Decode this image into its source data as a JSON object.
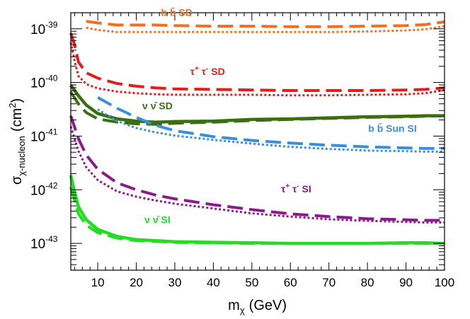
{
  "chart_data": {
    "type": "line",
    "title": "",
    "xlabel": "m",
    "xlabel_sub": "χ",
    "xlabel_unit": "(GeV)",
    "ylabel": "σ",
    "ylabel_sub": "χ-nucleon",
    "ylabel_unit": "(cm",
    "ylabel_unit_sup": "2",
    "ylabel_unit_close": ")",
    "xlim": [
      3,
      100
    ],
    "ylim_log10": [
      -43.5,
      -38.7
    ],
    "y_scale": "log",
    "x_ticks": [
      10,
      20,
      30,
      40,
      50,
      60,
      70,
      80,
      90,
      100
    ],
    "y_ticks": [
      {
        "base": "10",
        "exp": "-39",
        "value": -39
      },
      {
        "base": "10",
        "exp": "-40",
        "value": -40
      },
      {
        "base": "10",
        "exp": "-41",
        "value": -41
      },
      {
        "base": "10",
        "exp": "-42",
        "value": -42
      },
      {
        "base": "10",
        "exp": "-43",
        "value": -43
      }
    ],
    "series": [
      {
        "name": "bb SD dashed",
        "color": "#f07020",
        "style": "dashed",
        "x": [
          7,
          10,
          15,
          20,
          25,
          30,
          40,
          50,
          60,
          70,
          80,
          90,
          95,
          100
        ],
        "y_log10": [
          -38.86,
          -38.89,
          -38.93,
          -38.93,
          -38.93,
          -38.94,
          -38.95,
          -38.95,
          -38.96,
          -38.96,
          -38.95,
          -38.94,
          -38.92,
          -38.87
        ]
      },
      {
        "name": "bb SD dotted",
        "color": "#f07020",
        "style": "dotted",
        "x": [
          7,
          10,
          15,
          20,
          25,
          30,
          40,
          50,
          60,
          70,
          80,
          90,
          95,
          100
        ],
        "y_log10": [
          -38.98,
          -39.02,
          -39.06,
          -39.06,
          -39.06,
          -39.06,
          -39.06,
          -39.06,
          -39.06,
          -39.06,
          -39.05,
          -39.03,
          -39.01,
          -38.95
        ]
      },
      {
        "name": "tautau SD dashed",
        "color": "#e51c1c",
        "style": "dashed",
        "x": [
          3,
          4,
          5,
          7,
          10,
          15,
          20,
          25,
          30,
          40,
          50,
          60,
          70,
          80,
          90,
          95,
          100
        ],
        "y_log10": [
          -39.08,
          -39.3,
          -39.62,
          -39.82,
          -39.92,
          -40.02,
          -40.07,
          -40.1,
          -40.12,
          -40.13,
          -40.14,
          -40.15,
          -40.15,
          -40.15,
          -40.14,
          -40.13,
          -40.1
        ]
      },
      {
        "name": "tautau SD dotted",
        "color": "#e51c1c",
        "style": "dotted",
        "x": [
          3,
          4,
          5,
          7,
          10,
          15,
          20,
          25,
          30,
          40,
          50,
          60,
          70,
          80,
          90,
          95,
          100
        ],
        "y_log10": [
          -39.25,
          -39.6,
          -39.88,
          -40.03,
          -40.11,
          -40.17,
          -40.2,
          -40.22,
          -40.23,
          -40.23,
          -40.23,
          -40.24,
          -40.24,
          -40.23,
          -40.22,
          -40.2,
          -40.14
        ]
      },
      {
        "name": "nunu SD solid",
        "color": "#3a6e10",
        "style": "solid",
        "x": [
          3,
          5,
          7,
          10,
          15,
          20,
          25,
          30,
          40,
          50,
          60,
          70,
          80,
          90,
          95,
          100
        ],
        "y_log10": [
          -40.05,
          -40.25,
          -40.42,
          -40.58,
          -40.68,
          -40.72,
          -40.74,
          -40.73,
          -40.72,
          -40.69,
          -40.68,
          -40.66,
          -40.64,
          -40.63,
          -40.62,
          -40.62
        ]
      },
      {
        "name": "nunu SD dashed",
        "color": "#3a6e10",
        "style": "dashed",
        "x": [
          3,
          5,
          7,
          10,
          15,
          20,
          25,
          30,
          40,
          50,
          60,
          70,
          80,
          90,
          95,
          100
        ],
        "y_log10": [
          -40.18,
          -40.4,
          -40.56,
          -40.68,
          -40.74,
          -40.77,
          -40.78,
          -40.76,
          -40.74,
          -40.71,
          -40.69,
          -40.67,
          -40.65,
          -40.64,
          -40.63,
          -40.62
        ]
      },
      {
        "name": "bb Sun SI dashed",
        "color": "#3a8fdc",
        "style": "dashed",
        "x": [
          10,
          15,
          20,
          25,
          30,
          40,
          50,
          60,
          70,
          80,
          90,
          95,
          100
        ],
        "y_log10": [
          -40.28,
          -40.48,
          -40.65,
          -40.8,
          -40.9,
          -41.01,
          -41.08,
          -41.13,
          -41.17,
          -41.2,
          -41.22,
          -41.23,
          -41.23
        ]
      },
      {
        "name": "bb Sun SI dotted",
        "color": "#3a8fdc",
        "style": "dotted",
        "x": [
          10,
          15,
          20,
          25,
          30,
          40,
          50,
          60,
          70,
          80,
          90,
          95,
          100
        ],
        "y_log10": [
          -40.5,
          -40.72,
          -40.85,
          -40.93,
          -40.99,
          -41.07,
          -41.14,
          -41.2,
          -41.24,
          -41.27,
          -41.28,
          -41.29,
          -41.29
        ]
      },
      {
        "name": "tautau SI dashed",
        "color": "#8b1a8b",
        "style": "dashed",
        "x": [
          3,
          5,
          7,
          10,
          15,
          20,
          25,
          30,
          40,
          50,
          60,
          70,
          80,
          90,
          95,
          100
        ],
        "y_log10": [
          -40.62,
          -41.05,
          -41.35,
          -41.62,
          -41.87,
          -42.0,
          -42.1,
          -42.17,
          -42.28,
          -42.37,
          -42.45,
          -42.5,
          -42.54,
          -42.56,
          -42.57,
          -42.57
        ]
      },
      {
        "name": "tautau SI dotted",
        "color": "#8b1a8b",
        "style": "dotted",
        "x": [
          3,
          5,
          7,
          10,
          15,
          20,
          25,
          30,
          40,
          50,
          60,
          70,
          80,
          90,
          95,
          100
        ],
        "y_log10": [
          -40.82,
          -41.28,
          -41.58,
          -41.82,
          -42.03,
          -42.13,
          -42.2,
          -42.26,
          -42.35,
          -42.44,
          -42.5,
          -42.55,
          -42.58,
          -42.6,
          -42.61,
          -42.61
        ]
      },
      {
        "name": "nunu SI solid",
        "color": "#22dd22",
        "style": "solid",
        "x": [
          3,
          4,
          5,
          7,
          10,
          15,
          20,
          25,
          30,
          40,
          50,
          60,
          70,
          80,
          90,
          95,
          100
        ],
        "y_log10": [
          -41.73,
          -42.05,
          -42.32,
          -42.56,
          -42.74,
          -42.87,
          -42.93,
          -42.95,
          -42.97,
          -42.98,
          -42.99,
          -43.0,
          -43.0,
          -43.0,
          -42.99,
          -42.99,
          -43.0
        ]
      },
      {
        "name": "nunu SI dashed",
        "color": "#22dd22",
        "style": "dashed",
        "x": [
          3,
          4,
          5,
          7,
          10,
          15,
          20,
          25,
          30,
          40,
          50,
          60,
          70,
          80,
          90,
          95,
          100
        ],
        "y_log10": [
          -41.95,
          -42.2,
          -42.45,
          -42.66,
          -42.8,
          -42.9,
          -42.95,
          -42.96,
          -42.98,
          -42.99,
          -43.0,
          -43.0,
          -43.0,
          -43.0,
          -43.0,
          -43.0,
          -43.0
        ]
      }
    ],
    "annotations": [
      {
        "id": "bb-sd",
        "color": "#f07020",
        "p1": "b",
        "bar1": "",
        "p2": "b",
        "bar2": "̄",
        "sup1": "",
        "sup2": "",
        "suffix": "SD",
        "x": 30.5,
        "y_log10": -38.76
      },
      {
        "id": "tautau-sd",
        "color": "#e51c1c",
        "p1": "τ",
        "bar1": "",
        "p2": "τ",
        "bar2": "",
        "sup1": "+",
        "sup2": "-",
        "suffix": "SD",
        "x": 38.5,
        "y_log10": -39.86
      },
      {
        "id": "nunu-sd",
        "color": "#3a6e10",
        "p1": "ν",
        "bar1": "",
        "p2": "ν",
        "bar2": "̄",
        "sup1": "",
        "sup2": "",
        "suffix": "SD",
        "x": 25.5,
        "y_log10": -40.5
      },
      {
        "id": "bb-sun-si",
        "color": "#3a8fdc",
        "p1": "b",
        "bar1": "",
        "p2": "b",
        "bar2": "̄",
        "sup1": "",
        "sup2": "",
        "suffix": "Sun SI",
        "x": 86.5,
        "y_log10": -40.92
      },
      {
        "id": "tautau-si",
        "color": "#8b1a8b",
        "p1": "τ",
        "bar1": "",
        "p2": "τ",
        "bar2": "",
        "sup1": "+",
        "sup2": "-",
        "suffix": "SI",
        "x": 61.5,
        "y_log10": -42.05
      },
      {
        "id": "nunu-si",
        "color": "#22dd22",
        "p1": "ν",
        "bar1": "",
        "p2": "ν",
        "bar2": "̄",
        "sup1": "",
        "sup2": "",
        "suffix": "SI",
        "x": 25.5,
        "y_log10": -42.62
      }
    ]
  }
}
